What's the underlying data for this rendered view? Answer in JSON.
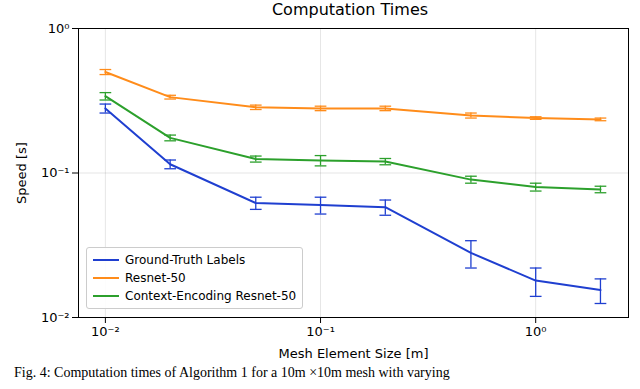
{
  "chart_data": {
    "type": "line",
    "title": "Computation Times",
    "caption": "Fig. 4: Computation times of Algorithm 1 for a 10m ×10m mesh with varying",
    "x_label": "Mesh Element Size [m]",
    "y_label": "Speed [s]",
    "x": [
      0.01,
      0.02,
      0.05,
      0.1,
      0.2,
      0.5,
      1,
      2
    ],
    "series": [
      {
        "name": "Ground-Truth Labels",
        "color": "#1f3fd0",
        "values": [
          0.28,
          0.115,
          0.062,
          0.06,
          0.058,
          0.028,
          0.018,
          0.0155
        ],
        "errors": [
          0.02,
          0.008,
          0.006,
          0.008,
          0.007,
          0.006,
          0.004,
          0.003
        ]
      },
      {
        "name": "Resnet-50",
        "color": "#ff8c1a",
        "values": [
          0.5,
          0.335,
          0.285,
          0.28,
          0.28,
          0.25,
          0.24,
          0.235
        ],
        "errors": [
          0.02,
          0.01,
          0.01,
          0.01,
          0.01,
          0.01,
          0.005,
          0.005
        ]
      },
      {
        "name": "Context-Encoding Resnet-50",
        "color": "#2ca02c",
        "values": [
          0.34,
          0.175,
          0.125,
          0.122,
          0.12,
          0.09,
          0.08,
          0.077
        ],
        "errors": [
          0.02,
          0.008,
          0.006,
          0.01,
          0.006,
          0.005,
          0.005,
          0.004
        ]
      }
    ],
    "xlim": [
      0.0075,
      2.7
    ],
    "ylim": [
      0.01,
      1
    ],
    "xticks": [
      {
        "value": 0.01,
        "label": "10⁻²"
      },
      {
        "value": 0.1,
        "label": "10⁻¹"
      },
      {
        "value": 1,
        "label": "10⁰"
      }
    ],
    "yticks": [
      {
        "value": 0.01,
        "label": "10⁻²"
      },
      {
        "value": 0.1,
        "label": "10⁻¹"
      },
      {
        "value": 1,
        "label": "10⁰"
      }
    ],
    "log": true,
    "grid": true,
    "legend": "lower left"
  }
}
